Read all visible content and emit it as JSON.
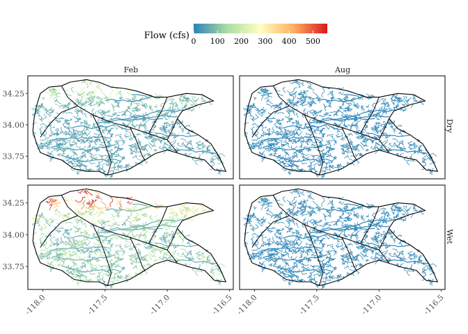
{
  "legend": {
    "title": "Flow (cfs)",
    "ticks": [
      "0",
      "100",
      "200",
      "300",
      "400",
      "500"
    ],
    "tick_values": [
      0,
      100,
      200,
      300,
      400,
      500
    ],
    "range": [
      0,
      560
    ],
    "colors": [
      "#2b83ba",
      "#abdda4",
      "#ffffbf",
      "#fdae61",
      "#d7191c"
    ]
  },
  "facets": {
    "columns": [
      "Feb",
      "Aug"
    ],
    "rows": [
      "Dry",
      "Wet"
    ]
  },
  "axes": {
    "x_ticks": [
      "-118.0",
      "-117.5",
      "-117.0",
      "-116.5"
    ],
    "x_values": [
      -118.0,
      -117.5,
      -117.0,
      -116.5
    ],
    "y_ticks": [
      "34.25",
      "34.00",
      "33.75"
    ],
    "y_values": [
      34.25,
      34.0,
      33.75
    ]
  },
  "chart_data": {
    "type": "map",
    "title": "",
    "xlim": [
      -118.12,
      -116.47
    ],
    "ylim": [
      33.57,
      34.39
    ],
    "panels": [
      {
        "col": "Feb",
        "row": "Dry",
        "typical_flow": 60,
        "highland_flow": 180
      },
      {
        "col": "Aug",
        "row": "Dry",
        "typical_flow": 10,
        "highland_flow": 15
      },
      {
        "col": "Feb",
        "row": "Wet",
        "typical_flow": 140,
        "highland_flow": 500
      },
      {
        "col": "Aug",
        "row": "Wet",
        "typical_flow": 10,
        "highland_flow": 20
      }
    ],
    "watershed_outline": [
      [
        -118.05,
        34.15
      ],
      [
        -118.02,
        34.25
      ],
      [
        -117.95,
        34.3
      ],
      [
        -117.85,
        34.31
      ],
      [
        -117.78,
        34.34
      ],
      [
        -117.65,
        34.36
      ],
      [
        -117.55,
        34.34
      ],
      [
        -117.45,
        34.3
      ],
      [
        -117.35,
        34.29
      ],
      [
        -117.25,
        34.27
      ],
      [
        -117.1,
        34.22
      ],
      [
        -117.0,
        34.22
      ],
      [
        -116.85,
        34.25
      ],
      [
        -116.72,
        34.24
      ],
      [
        -116.63,
        34.19
      ],
      [
        -116.75,
        34.16
      ],
      [
        -116.88,
        34.11
      ],
      [
        -116.92,
        34.05
      ],
      [
        -116.85,
        33.97
      ],
      [
        -116.75,
        33.92
      ],
      [
        -116.65,
        33.85
      ],
      [
        -116.58,
        33.74
      ],
      [
        -116.53,
        33.63
      ],
      [
        -116.62,
        33.64
      ],
      [
        -116.7,
        33.72
      ],
      [
        -116.8,
        33.74
      ],
      [
        -116.9,
        33.77
      ],
      [
        -117.0,
        33.8
      ],
      [
        -117.1,
        33.77
      ],
      [
        -117.18,
        33.72
      ],
      [
        -117.3,
        33.65
      ],
      [
        -117.4,
        33.62
      ],
      [
        -117.48,
        33.6
      ],
      [
        -117.55,
        33.63
      ],
      [
        -117.65,
        33.63
      ],
      [
        -117.75,
        33.65
      ],
      [
        -117.85,
        33.72
      ],
      [
        -117.95,
        33.75
      ],
      [
        -118.02,
        33.78
      ],
      [
        -118.05,
        33.85
      ],
      [
        -118.08,
        33.95
      ],
      [
        -118.07,
        34.05
      ],
      [
        -118.05,
        34.15
      ]
    ],
    "sub_boundaries": [
      [
        [
          -117.85,
          34.31
        ],
        [
          -117.8,
          34.22
        ],
        [
          -117.72,
          34.15
        ],
        [
          -117.6,
          34.08
        ],
        [
          -117.45,
          34.02
        ],
        [
          -117.3,
          33.98
        ],
        [
          -117.15,
          33.93
        ],
        [
          -117.0,
          33.88
        ],
        [
          -116.92,
          33.78
        ]
      ],
      [
        [
          -117.6,
          34.08
        ],
        [
          -117.55,
          33.98
        ],
        [
          -117.5,
          33.85
        ],
        [
          -117.45,
          33.7
        ],
        [
          -117.48,
          33.6
        ]
      ],
      [
        [
          -117.72,
          34.15
        ],
        [
          -117.85,
          34.1
        ],
        [
          -117.95,
          34.0
        ],
        [
          -118.02,
          33.9
        ]
      ],
      [
        [
          -117.3,
          33.98
        ],
        [
          -117.25,
          33.88
        ],
        [
          -117.2,
          33.75
        ],
        [
          -117.18,
          33.72
        ]
      ],
      [
        [
          -117.0,
          34.22
        ],
        [
          -117.05,
          34.1
        ],
        [
          -117.1,
          34.02
        ],
        [
          -117.15,
          33.93
        ]
      ],
      [
        [
          -116.92,
          34.05
        ],
        [
          -116.95,
          33.98
        ],
        [
          -117.0,
          33.88
        ]
      ]
    ]
  }
}
